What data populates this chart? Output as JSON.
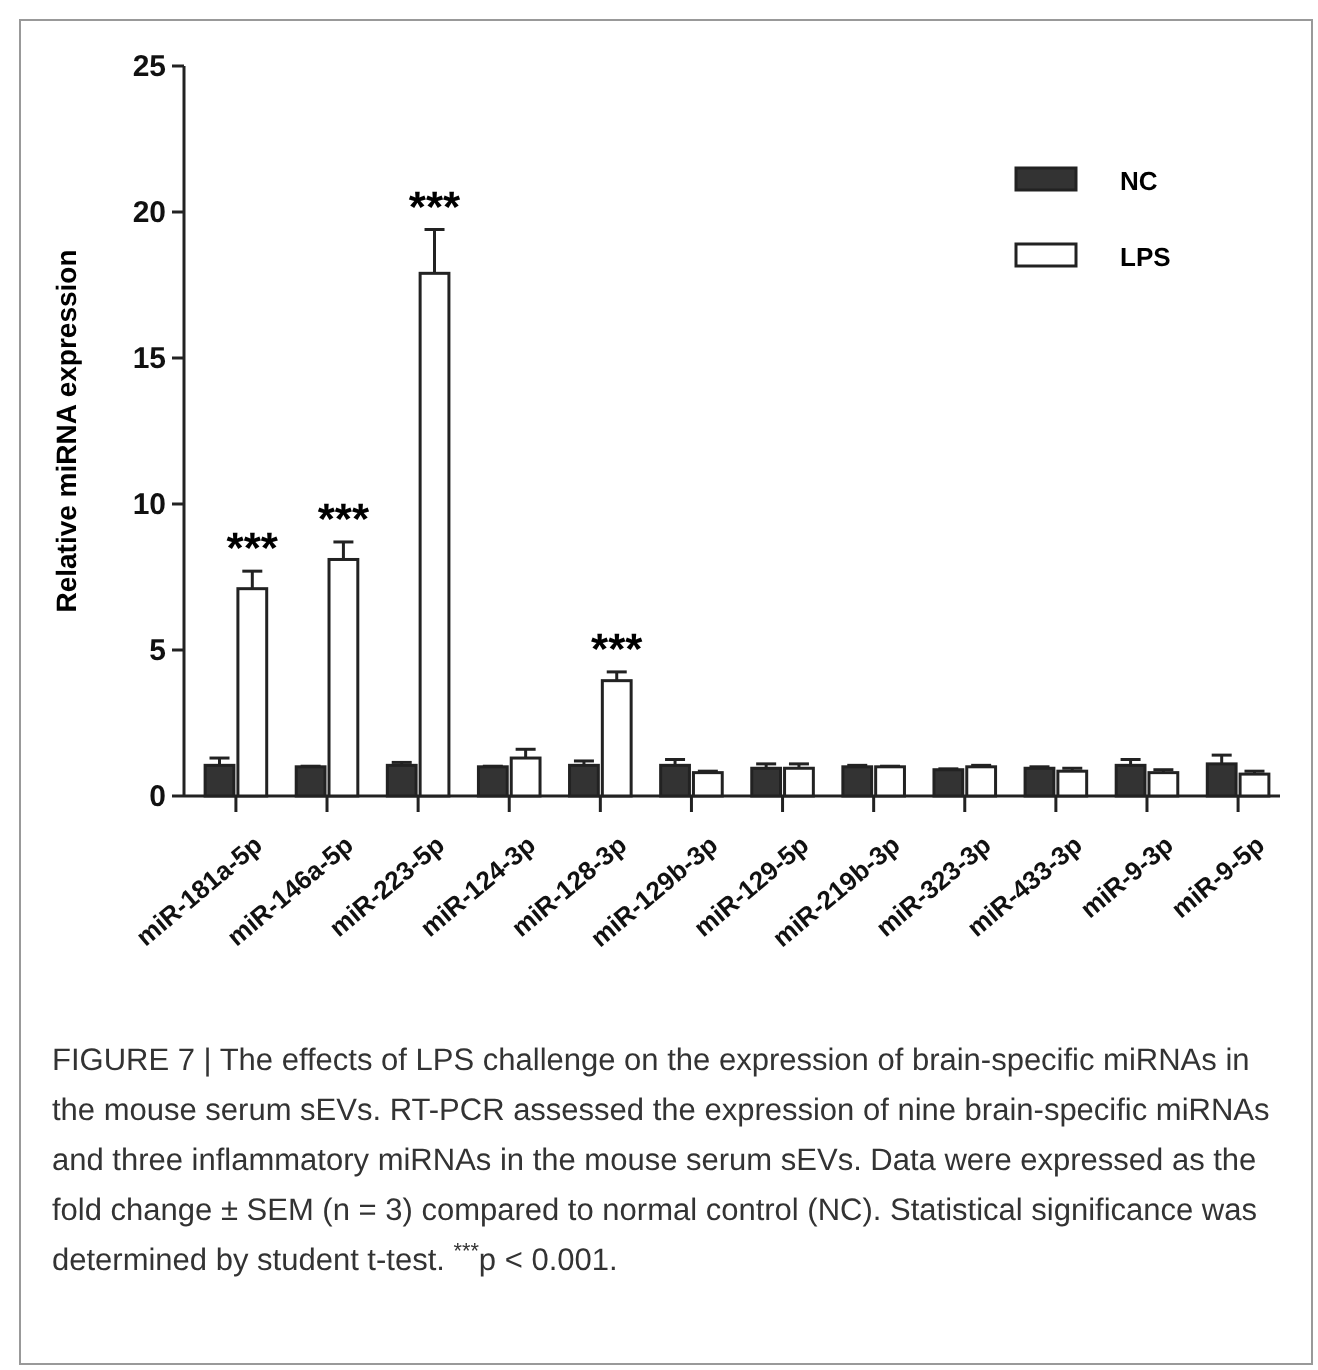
{
  "chart_data": {
    "type": "bar",
    "ylabel": "Relative miRNA expression",
    "categories": [
      "miR-181a-5p",
      "miR-146a-5p",
      "miR-223-5p",
      "miR-124-3p",
      "miR-128-3p",
      "miR-129b-3p",
      "miR-129-5p",
      "miR-219b-3p",
      "miR-323-3p",
      "miR-433-3p",
      "miR-9-3p",
      "miR-9-5p"
    ],
    "series": [
      {
        "name": "NC",
        "color": "#333333",
        "values": [
          1.05,
          1.0,
          1.05,
          1.0,
          1.05,
          1.05,
          0.95,
          1.0,
          0.9,
          0.95,
          1.05,
          1.1
        ],
        "errors": [
          0.25,
          0.02,
          0.1,
          0.02,
          0.15,
          0.2,
          0.15,
          0.05,
          0.03,
          0.05,
          0.2,
          0.3
        ]
      },
      {
        "name": "LPS",
        "color": "#ffffff",
        "values": [
          7.1,
          8.1,
          17.9,
          1.3,
          3.95,
          0.8,
          0.95,
          1.0,
          1.0,
          0.85,
          0.8,
          0.75
        ],
        "errors": [
          0.6,
          0.6,
          1.5,
          0.3,
          0.3,
          0.05,
          0.15,
          0.02,
          0.05,
          0.1,
          0.1,
          0.1
        ]
      }
    ],
    "ylim": [
      0,
      25
    ],
    "yticks": [
      0,
      5,
      10,
      15,
      20,
      25
    ],
    "grid": false,
    "legend": "top right",
    "annotations": [
      {
        "text": "***",
        "x": "miR-181a-5p",
        "y": 7.7
      },
      {
        "text": "***",
        "x": "miR-146a-5p",
        "y": 8.7
      },
      {
        "text": "***",
        "x": "miR-223-5p",
        "y": 19.4
      },
      {
        "text": "***",
        "x": "miR-128-3p",
        "y": 4.25
      },
      "FIGURE 7 | The effects of LPS challenge on the expression of brain-specific miRNAs in the mouse serum sEVs. RT-PCR assessed the expression of nine brain-specific miRNAs and three inflammatory miRNAs in the mouse serum sEVs. Data were expressed as the fold change ± SEM (n = 3) compared to normal control (NC). Statistical significance was determined by student t-test. $^{***}$p < 0.001."
    ]
  }
}
